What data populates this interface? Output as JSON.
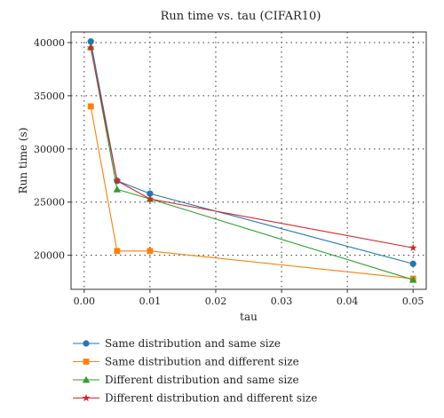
{
  "chart_data": {
    "type": "line",
    "title": "Run time vs. tau (CIFAR10)",
    "xlabel": "tau",
    "ylabel": "Run time (s)",
    "x": [
      0.001,
      0.005,
      0.01,
      0.05
    ],
    "xlim": [
      -0.002,
      0.052
    ],
    "ylim": [
      16800,
      41000
    ],
    "xticks": [
      0.0,
      0.01,
      0.02,
      0.03,
      0.04,
      0.05
    ],
    "xtick_labels": [
      "0.00",
      "0.01",
      "0.02",
      "0.03",
      "0.04",
      "0.05"
    ],
    "yticks": [
      20000,
      25000,
      30000,
      35000,
      40000
    ],
    "ytick_labels": [
      "20000",
      "25000",
      "30000",
      "35000",
      "40000"
    ],
    "grid": true,
    "legend_position": "below",
    "series": [
      {
        "name": "Same distribution and same size",
        "color": "#1f77b4",
        "marker": "circle",
        "values": [
          40100,
          27000,
          25800,
          19200
        ]
      },
      {
        "name": "Same distribution and different size",
        "color": "#ff7f0e",
        "marker": "square",
        "values": [
          34000,
          20400,
          20400,
          17800
        ]
      },
      {
        "name": "Different distribution and same size",
        "color": "#2ca02c",
        "marker": "triangle",
        "values": [
          39600,
          26200,
          25300,
          17700
        ]
      },
      {
        "name": "Different distribution and different size",
        "color": "#d62728",
        "marker": "star",
        "values": [
          39500,
          27000,
          25300,
          20700
        ]
      }
    ]
  }
}
